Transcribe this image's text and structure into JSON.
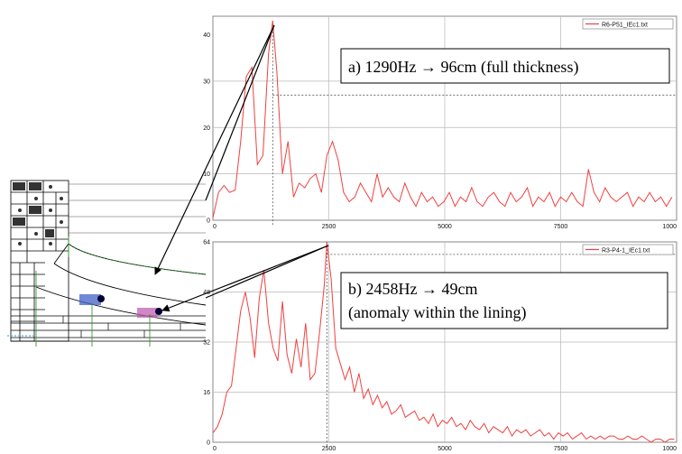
{
  "chart_data": [
    {
      "type": "line",
      "panel": "top",
      "legend": "R6-P51_IEc1.txt",
      "legend_position": "top-right",
      "annotation": "a) 1290Hz  → 96cm (full thickness)",
      "xlim": [
        0,
        10000
      ],
      "ylim": [
        0,
        44
      ],
      "xticks": [
        "0",
        "2500",
        "5000",
        "7500",
        "1000"
      ],
      "yticks": [
        "0",
        "10",
        "20",
        "30",
        "40"
      ],
      "ytick_values": [
        0,
        10,
        20,
        30,
        40
      ],
      "grid": true,
      "peak": {
        "x": 1290,
        "y": 43
      },
      "reference_y": 27,
      "series": [
        {
          "color": "#f04040",
          "x": [
            0,
            120,
            240,
            360,
            480,
            600,
            720,
            840,
            960,
            1080,
            1200,
            1290,
            1380,
            1500,
            1620,
            1740,
            1860,
            1980,
            2100,
            2220,
            2340,
            2460,
            2580,
            2700,
            2820,
            2940,
            3060,
            3180,
            3300,
            3420,
            3540,
            3660,
            3780,
            3900,
            4020,
            4140,
            4260,
            4380,
            4500,
            4620,
            4740,
            4860,
            4980,
            5100,
            5220,
            5340,
            5460,
            5580,
            5700,
            5820,
            5940,
            6060,
            6180,
            6300,
            6420,
            6540,
            6660,
            6780,
            6900,
            7020,
            7140,
            7260,
            7380,
            7500,
            7620,
            7740,
            7860,
            7980,
            8100,
            8220,
            8340,
            8460,
            8580,
            8700,
            8820,
            8940,
            9060,
            9180,
            9300,
            9420,
            9540,
            9660,
            9780,
            9900
          ],
          "y": [
            0.5,
            6,
            7.5,
            6,
            6.5,
            17,
            31,
            33,
            12,
            14,
            36,
            43,
            32,
            10,
            17,
            5,
            8,
            7,
            9,
            10,
            6,
            14,
            17,
            13,
            6,
            4,
            5,
            8,
            6,
            4,
            10,
            5,
            7,
            5,
            4,
            8,
            5,
            3,
            6,
            4,
            5,
            3,
            4,
            6,
            3,
            5,
            4,
            7,
            4,
            3,
            5,
            6,
            4,
            3,
            6,
            4,
            5,
            7,
            3,
            5,
            4,
            6,
            3,
            5,
            4,
            6,
            4,
            3,
            11,
            6,
            4,
            7,
            5,
            4,
            5,
            6,
            3,
            5,
            4,
            6,
            4,
            5,
            3,
            5
          ]
        }
      ]
    },
    {
      "type": "line",
      "panel": "bottom",
      "legend": "R3-P4-1_IEc1.txt",
      "legend_position": "top-right",
      "annotation_lines": [
        "b) 2458Hz  → 49cm",
        "(anomaly within the lining)"
      ],
      "xlim": [
        0,
        10000
      ],
      "ylim": [
        0,
        64
      ],
      "xticks": [
        "0",
        "2500",
        "5000",
        "7500",
        "1000"
      ],
      "yticks": [
        "0",
        "16",
        "32",
        "48",
        "64"
      ],
      "ytick_values": [
        0,
        16,
        32,
        48,
        64
      ],
      "grid": true,
      "peak": {
        "x": 2458,
        "y": 64
      },
      "reference_y": 60,
      "series": [
        {
          "color": "#f04040",
          "x": [
            0,
            100,
            200,
            300,
            400,
            500,
            600,
            700,
            800,
            900,
            1000,
            1100,
            1200,
            1300,
            1400,
            1500,
            1600,
            1700,
            1800,
            1900,
            2000,
            2100,
            2200,
            2300,
            2400,
            2458,
            2550,
            2650,
            2750,
            2850,
            2950,
            3050,
            3150,
            3250,
            3350,
            3450,
            3550,
            3650,
            3750,
            3850,
            3950,
            4050,
            4150,
            4250,
            4350,
            4450,
            4550,
            4650,
            4750,
            4850,
            4950,
            5050,
            5150,
            5250,
            5350,
            5450,
            5550,
            5650,
            5750,
            5850,
            5950,
            6050,
            6150,
            6250,
            6350,
            6450,
            6550,
            6650,
            6750,
            6850,
            6950,
            7050,
            7150,
            7250,
            7350,
            7450,
            7550,
            7650,
            7750,
            7850,
            7950,
            8050,
            8150,
            8250,
            8350,
            8450,
            8550,
            8650,
            8750,
            8850,
            8950,
            9050,
            9150,
            9250,
            9350,
            9450,
            9550,
            9650,
            9750,
            9850,
            9950
          ],
          "y": [
            3,
            5,
            9,
            16,
            18,
            30,
            42,
            48,
            40,
            27,
            46,
            55,
            38,
            30,
            26,
            45,
            28,
            22,
            33,
            24,
            38,
            20,
            22,
            35,
            50,
            64,
            52,
            30,
            25,
            20,
            24,
            16,
            22,
            14,
            17,
            12,
            15,
            11,
            13,
            9,
            10,
            12,
            8,
            9,
            10,
            7,
            8,
            6,
            9,
            5,
            7,
            6,
            8,
            5,
            6,
            4,
            7,
            5,
            4,
            6,
            3,
            5,
            4,
            3,
            5,
            2,
            4,
            3,
            4,
            2,
            3,
            4,
            2,
            3,
            1,
            3,
            2,
            3,
            1,
            2,
            3,
            1,
            2,
            1,
            2,
            1,
            2,
            2,
            1,
            1,
            2,
            1,
            1,
            2,
            1,
            0,
            1,
            1,
            0,
            1,
            1
          ]
        }
      ]
    }
  ]
}
